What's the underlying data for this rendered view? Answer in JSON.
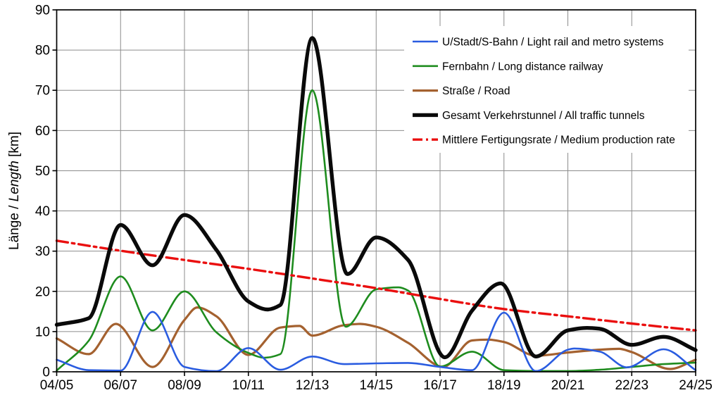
{
  "chart_data": {
    "type": "line",
    "title": "",
    "ylabel": {
      "de": "Länge",
      "separator": " / ",
      "en": "Length",
      "unit": " [km]"
    },
    "x_axis": {
      "tick_labels": [
        "04/05",
        "06/07",
        "08/09",
        "10/11",
        "12/13",
        "14/15",
        "16/17",
        "18/19",
        "20/21",
        "22/23",
        "24/25"
      ],
      "tick_positions": [
        0,
        2,
        4,
        6,
        8,
        10,
        12,
        14,
        16,
        18,
        20
      ]
    },
    "y_axis": {
      "min": 0,
      "max": 90,
      "tick_step": 10,
      "tick_labels": [
        "0",
        "10",
        "20",
        "30",
        "40",
        "50",
        "60",
        "70",
        "80",
        "90"
      ]
    },
    "grid": true,
    "grid_color": "#8c8c8c",
    "frame_color": "#000000",
    "legend_position": "top-right-inside",
    "series": [
      {
        "name": "U/Stadt/S-Bahn / Light rail and metro systems",
        "color": "#2a5ce0",
        "width": 2.6,
        "dash": null,
        "zorder": 3,
        "x": [
          0,
          1,
          2,
          3,
          4,
          5,
          6,
          7,
          8,
          9,
          10,
          11,
          12,
          13,
          14,
          15,
          16,
          16.2,
          17,
          17.85,
          19,
          20
        ],
        "y": [
          3,
          0.4,
          0.3,
          14.9,
          1.2,
          0.15,
          5.9,
          0.5,
          3.8,
          1.9,
          2.1,
          2.2,
          1.2,
          0.4,
          14.7,
          0.15,
          5.5,
          5.8,
          5.0,
          1.1,
          5.6,
          0.4
        ]
      },
      {
        "name": "Fernbahn / Long distance railway",
        "color": "#1e8c1e",
        "width": 2.6,
        "dash": null,
        "zorder": 2,
        "x": [
          0,
          1,
          2,
          3,
          4,
          5,
          6,
          6.5,
          7,
          8,
          9.05,
          10,
          10.7,
          11,
          12,
          13,
          14,
          15,
          16,
          17,
          18,
          19,
          20
        ],
        "y": [
          0.3,
          7.7,
          23.7,
          10.3,
          20,
          9.8,
          4.7,
          3.5,
          4.4,
          70,
          11.2,
          20.5,
          21,
          20.2,
          1.3,
          5,
          0.4,
          0.2,
          0.2,
          0.5,
          1.2,
          1.9,
          2.3
        ]
      },
      {
        "name": "Straße / Road",
        "color": "#a4612f",
        "width": 3.2,
        "dash": null,
        "zorder": 1,
        "x": [
          0,
          1,
          1.85,
          3,
          4,
          4.4,
          5,
          6,
          7,
          7.6,
          8,
          9,
          9.5,
          10,
          11,
          12.1,
          13,
          13.5,
          14,
          15,
          16,
          17,
          17.6,
          18,
          19.2,
          20
        ],
        "y": [
          8.3,
          4.4,
          11.9,
          1.2,
          12.9,
          16,
          13.8,
          4.2,
          11,
          11.4,
          9,
          11.6,
          11.9,
          11.2,
          7.2,
          1.2,
          7.8,
          8,
          7.4,
          4,
          4.8,
          5.5,
          5.7,
          4.9,
          0.7,
          3
        ]
      },
      {
        "name": "Gesamt Verkehrstunnel / All traffic tunnels",
        "color": "#0a0a0a",
        "width": 5.4,
        "dash": null,
        "zorder": 5,
        "x": [
          0,
          1,
          2,
          3,
          4,
          5,
          6,
          6.6,
          7,
          8,
          9.1,
          10,
          11,
          12.15,
          13,
          13.9,
          15,
          16,
          16.6,
          17,
          18,
          19,
          20
        ],
        "y": [
          11.7,
          13.3,
          36.5,
          26.5,
          39,
          30.3,
          17.5,
          15.5,
          16.6,
          83,
          24.3,
          33.4,
          27.8,
          3.6,
          15.2,
          22,
          3.8,
          10.3,
          10.9,
          10.7,
          6.7,
          8.7,
          5.4
        ]
      },
      {
        "name": "Mittlere Fertigungsrate / Medium production rate",
        "color": "#ea0f0f",
        "width": 3.4,
        "dash": [
          16,
          6,
          3.5,
          6
        ],
        "zorder": 4,
        "x": [
          0,
          2,
          4,
          6,
          8,
          10,
          12,
          14,
          16,
          18,
          20
        ],
        "y": [
          32.6,
          30.1,
          27.8,
          25.6,
          23.2,
          20.8,
          18.1,
          15.6,
          13.8,
          12,
          10.3
        ]
      }
    ]
  }
}
